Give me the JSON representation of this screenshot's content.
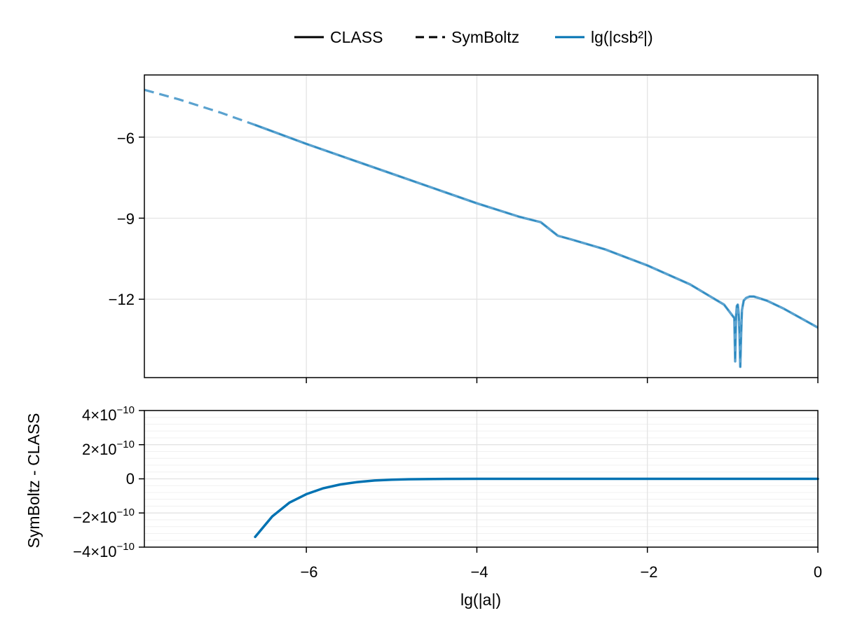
{
  "legend": {
    "entries": [
      {
        "label": "CLASS",
        "style": "solid",
        "color": "#000000"
      },
      {
        "label": "SymBoltz",
        "style": "dashed",
        "color": "#000000"
      },
      {
        "label": "lg(|csb²|)",
        "style": "solid",
        "color": "#0072b2"
      }
    ]
  },
  "colors": {
    "series": "#0072b2",
    "series_light": "#5aa2cf",
    "grid": "#e2e2e2",
    "axis": "#000000"
  },
  "chart_data": [
    {
      "type": "line",
      "title": "",
      "xlabel": "",
      "ylabel": "",
      "xlim": [
        -7.9,
        0
      ],
      "ylim": [
        -14.9,
        -3.7
      ],
      "xticks": [
        -6,
        -4,
        -2,
        0
      ],
      "xtick_labels_shown": false,
      "yticks": [
        -12,
        -9,
        -6
      ],
      "ytick_labels": [
        "−12",
        "−9",
        "−6"
      ],
      "grid": true,
      "series": [
        {
          "name": "SymBoltz",
          "style": "dashed",
          "x": [
            -7.9,
            -7.5,
            -7.0,
            -6.6
          ],
          "y": [
            -4.25,
            -4.6,
            -5.1,
            -5.55
          ]
        },
        {
          "name": "CLASS",
          "style": "solid",
          "x": [
            -6.6,
            -6.0,
            -5.5,
            -5.0,
            -4.5,
            -4.0,
            -3.5,
            -3.25,
            -3.15,
            -3.05,
            -2.9,
            -2.5,
            -2.0,
            -1.5,
            -1.1,
            -0.98,
            -0.97,
            -0.96,
            -0.95,
            -0.94,
            -0.93,
            -0.92,
            -0.91,
            -0.9,
            -0.89,
            -0.87,
            -0.84,
            -0.8,
            -0.75,
            -0.6,
            -0.4,
            -0.2,
            0.0
          ],
          "y": [
            -5.55,
            -6.25,
            -6.8,
            -7.35,
            -7.9,
            -8.45,
            -8.95,
            -9.15,
            -9.4,
            -9.65,
            -9.78,
            -10.15,
            -10.75,
            -11.45,
            -12.2,
            -12.7,
            -14.3,
            -12.65,
            -12.25,
            -12.2,
            -12.5,
            -13.2,
            -14.5,
            -13.3,
            -12.4,
            -12.05,
            -11.95,
            -11.9,
            -11.9,
            -12.05,
            -12.35,
            -12.7,
            -13.05
          ]
        }
      ]
    },
    {
      "type": "line",
      "title": "",
      "xlabel": "lg(|a|)",
      "ylabel": "SymBoltz - CLASS",
      "xlim": [
        -7.9,
        0
      ],
      "ylim": [
        -4e-10,
        4e-10
      ],
      "xticks": [
        -6,
        -4,
        -2,
        0
      ],
      "xtick_labels": [
        "−6",
        "−4",
        "−2",
        "0"
      ],
      "yticks": [
        -4e-10,
        -2e-10,
        0,
        2e-10,
        4e-10
      ],
      "ytick_labels": [
        {
          "base": "−4×10",
          "exp": "−10"
        },
        {
          "base": "−2×10",
          "exp": "−10"
        },
        {
          "base": "0",
          "exp": ""
        },
        {
          "base": "2×10",
          "exp": "−10"
        },
        {
          "base": "4×10",
          "exp": "−10"
        }
      ],
      "grid": true,
      "series": [
        {
          "name": "",
          "style": "solid",
          "x": [
            -6.6,
            -6.4,
            -6.2,
            -6.0,
            -5.8,
            -5.6,
            -5.4,
            -5.2,
            -5.0,
            -4.8,
            -4.5,
            -4.0,
            -3.0,
            -2.0,
            -1.0,
            0.0
          ],
          "y": [
            -3.4e-10,
            -2.2e-10,
            -1.4e-10,
            -9e-11,
            -5.5e-11,
            -3.3e-11,
            -1.9e-11,
            -1e-11,
            -5e-12,
            -2.5e-12,
            -1e-12,
            -2e-13,
            0,
            0,
            0,
            0
          ]
        }
      ]
    }
  ]
}
